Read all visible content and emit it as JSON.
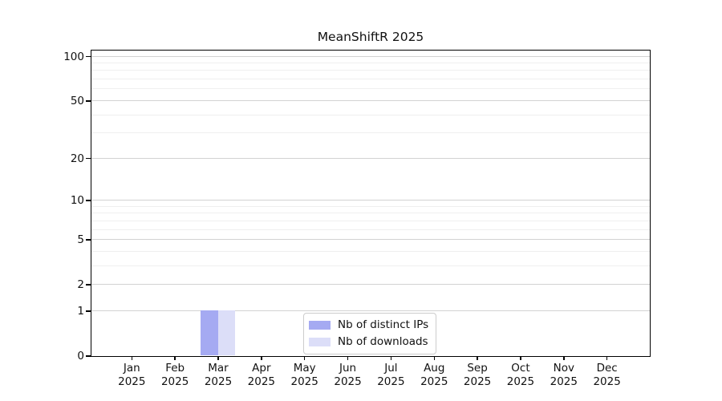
{
  "title": "MeanShiftR 2025",
  "legend": {
    "items": [
      {
        "label": "Nb of distinct IPs",
        "color": "#a5aaf2"
      },
      {
        "label": "Nb of downloads",
        "color": "#dcdef8"
      }
    ]
  },
  "chart_data": {
    "type": "bar",
    "title": "MeanShiftR 2025",
    "categories": [
      "Jan 2025",
      "Feb 2025",
      "Mar 2025",
      "Apr 2025",
      "May 2025",
      "Jun 2025",
      "Jul 2025",
      "Aug 2025",
      "Sep 2025",
      "Oct 2025",
      "Nov 2025",
      "Dec 2025"
    ],
    "series": [
      {
        "name": "Nb of distinct IPs",
        "color": "#a5aaf2",
        "values": [
          0,
          0,
          1,
          0,
          0,
          0,
          0,
          0,
          0,
          0,
          0,
          0
        ]
      },
      {
        "name": "Nb of downloads",
        "color": "#dcdef8",
        "values": [
          0,
          0,
          1,
          0,
          0,
          0,
          0,
          0,
          0,
          0,
          0,
          0
        ]
      }
    ],
    "xlabel": "",
    "ylabel": "",
    "yscale": "log1p",
    "ylim": [
      0,
      110
    ],
    "ytick_major": [
      0,
      1,
      2,
      5,
      10,
      20,
      50,
      100
    ],
    "ytick_minor": [
      3,
      4,
      6,
      7,
      8,
      9,
      30,
      40,
      60,
      70,
      80,
      90
    ],
    "grid": true,
    "legend_position": "lower center"
  }
}
